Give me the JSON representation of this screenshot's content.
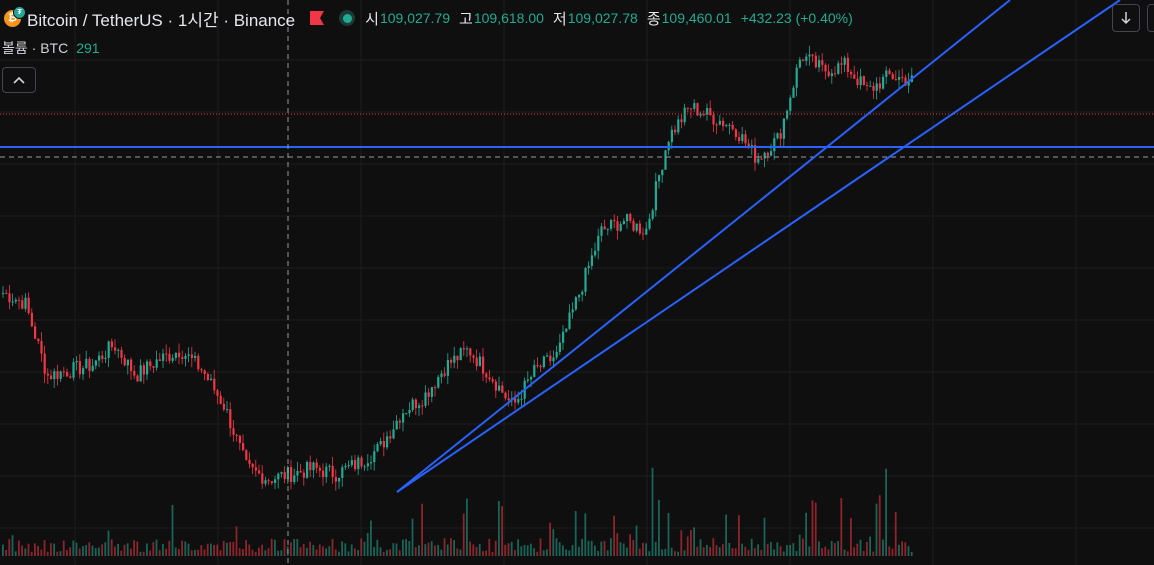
{
  "header": {
    "symbol_title": "Bitcoin / TetherUS · 1시간 · Binance",
    "ohlc": [
      {
        "label": "시",
        "value": "109,027.79"
      },
      {
        "label": "고",
        "value": "109,618.00"
      },
      {
        "label": "저",
        "value": "109,027.78"
      },
      {
        "label": "종",
        "value": "109,460.01"
      }
    ],
    "change": "+432.23 (+0.40%)"
  },
  "volume": {
    "label": "볼륨 · BTC",
    "value": "291"
  },
  "icons": {
    "coin": "bitcoin-logo-icon",
    "flag": "flag-icon",
    "status": "market-open-dot-icon",
    "collapse": "chevron-up-icon",
    "scroll": "arrow-down-icon"
  },
  "colors": {
    "background": "#0f0f0f",
    "up": "#22ab94",
    "down": "#f23645",
    "trendline": "#2962ff",
    "grid": "#1e1e1e",
    "flag": "#f23645",
    "coin": "#f7931a"
  },
  "chart_data": {
    "type": "candlestick",
    "symbol": "BTCUSDT",
    "interval": "1h",
    "current_close": 109460.01,
    "price_path_approx": [
      107400,
      107300,
      106600,
      106650,
      106700,
      106900,
      106600,
      106750,
      106850,
      106650,
      106300,
      105700,
      105600,
      105650,
      105700,
      105650,
      105750,
      105900,
      106250,
      106400,
      106700,
      106850,
      106600,
      106300,
      106650,
      106800,
      107400,
      108000,
      108100,
      108000,
      108900,
      109200,
      109100,
      109000,
      108700,
      108900,
      109700,
      109550,
      109600,
      109350,
      109500,
      109450
    ],
    "horizontal_line": {
      "style": "solid"
    },
    "reference_line": {
      "style": "dashed"
    },
    "drawn_trendlines": 2
  }
}
